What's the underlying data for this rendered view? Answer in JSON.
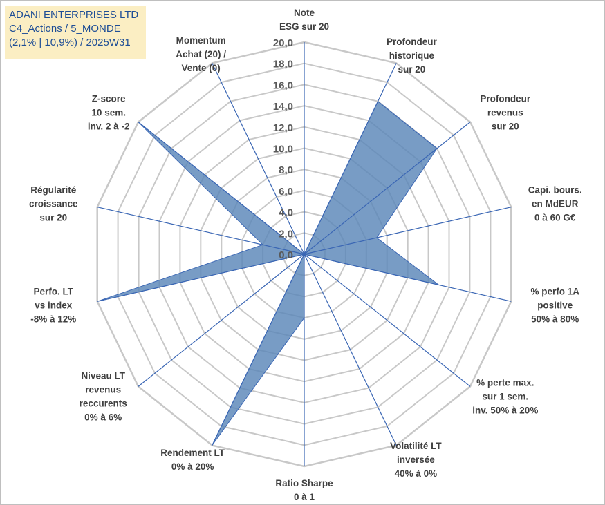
{
  "title_box": {
    "line1": "ADANI ENTERPRISES LTD",
    "line2": "C4_Actions / 5_MONDE",
    "line3": "(2,1% | 10,9%) / 2025W31"
  },
  "colors": {
    "fill": "#5a86b8",
    "line": "#3a66b4",
    "grid": "#c8c8c8",
    "title_bg": "#fbeec3",
    "title_text": "#1f4e96"
  },
  "chart_data": {
    "type": "radar",
    "rmin": 0,
    "rmax": 20,
    "grid_step": 2,
    "tick_labels": [
      "0,0",
      "2,0",
      "4,0",
      "6,0",
      "8,0",
      "10,0",
      "12,0",
      "14,0",
      "16,0",
      "18,0",
      "20,0"
    ],
    "axes": [
      {
        "label": [
          "Note",
          "ESG sur 20"
        ],
        "value": 0
      },
      {
        "label": [
          "Profondeur",
          "historique",
          "sur 20"
        ],
        "value": 16
      },
      {
        "label": [
          "Profondeur",
          "revenus",
          "sur 20"
        ],
        "value": 16
      },
      {
        "label": [
          "Capi. bours.",
          "en MdEUR",
          "0 à 60 G€"
        ],
        "value": 7
      },
      {
        "label": [
          "% perfo 1A",
          "positive",
          "50% à 80%"
        ],
        "value": 13
      },
      {
        "label": [
          "% perte max.",
          "sur 1 sem.",
          "inv. 50% à 20%"
        ],
        "value": 0
      },
      {
        "label": [
          "Volatilité LT",
          "inversée",
          "40% à 0%"
        ],
        "value": 0
      },
      {
        "label": [
          "Ratio Sharpe",
          "0 à 1"
        ],
        "value": 6
      },
      {
        "label": [
          "Rendement LT",
          "0% à 20%"
        ],
        "value": 20
      },
      {
        "label": [
          "Niveau LT",
          "revenus",
          "reccurents",
          "0% à 6%"
        ],
        "value": 0
      },
      {
        "label": [
          "Perfo. LT",
          "vs index",
          "-8% à 12%"
        ],
        "value": 20
      },
      {
        "label": [
          "Régularité",
          "croissance",
          "sur 20"
        ],
        "value": 4
      },
      {
        "label": [
          "Z-score",
          "10 sem.",
          "inv. 2 à -2"
        ],
        "value": 20
      },
      {
        "label": [
          "Momentum",
          "Achat (20) /",
          "Vente (0)"
        ],
        "value": 0
      }
    ]
  }
}
